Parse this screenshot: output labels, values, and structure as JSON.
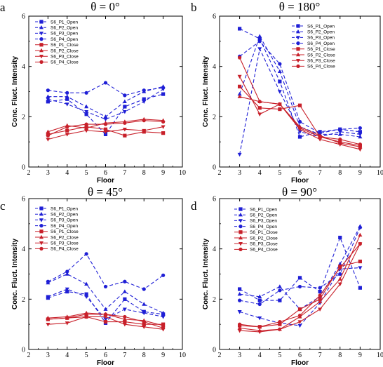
{
  "colors": {
    "open": "#1f1fd6",
    "close": "#c8202a"
  },
  "legend_labels": [
    "S6_P1_Open",
    "S6_P2_Open",
    "S6_P3_Open",
    "S6_P4_Open",
    "S6_P1_Close",
    "S6_P2_Close",
    "S6_P3_Close",
    "S6_P4_Close"
  ],
  "chart_data": [
    {
      "panel": "a",
      "title": "θ = 0°",
      "type": "line",
      "xlabel": "Floor",
      "ylabel": "Conc. Fluct. Intensity",
      "xlim": [
        2,
        10
      ],
      "ylim": [
        0,
        6
      ],
      "xticks": [
        2,
        3,
        4,
        5,
        6,
        7,
        8,
        9,
        10
      ],
      "yticks": [
        0,
        2,
        4,
        6
      ],
      "x": [
        3,
        4,
        5,
        6,
        7,
        8,
        9
      ],
      "series": [
        {
          "name": "S6_P1_Open",
          "style": "open",
          "marker": "square",
          "values": [
            2.6,
            2.7,
            2.1,
            1.3,
            2.4,
            2.7,
            2.9
          ]
        },
        {
          "name": "S6_P2_Open",
          "style": "open",
          "marker": "triangle",
          "values": [
            2.8,
            2.8,
            2.4,
            2.0,
            2.6,
            3.0,
            3.2
          ]
        },
        {
          "name": "S6_P3_Open",
          "style": "open",
          "marker": "tri-down",
          "values": [
            2.7,
            2.5,
            2.2,
            1.9,
            2.2,
            2.6,
            3.1
          ]
        },
        {
          "name": "S6_P4_Open",
          "style": "open",
          "marker": "circle",
          "values": [
            3.05,
            2.95,
            2.95,
            3.35,
            2.85,
            3.05,
            3.15
          ]
        },
        {
          "name": "S6_P1_Close",
          "style": "close",
          "marker": "square",
          "values": [
            1.3,
            1.45,
            1.6,
            1.5,
            1.25,
            1.4,
            1.35
          ]
        },
        {
          "name": "S6_P2_Close",
          "style": "close",
          "marker": "triangle",
          "values": [
            1.4,
            1.65,
            1.55,
            1.75,
            1.8,
            1.9,
            1.85
          ]
        },
        {
          "name": "S6_P3_Close",
          "style": "close",
          "marker": "tri-down",
          "values": [
            1.1,
            1.3,
            1.45,
            1.4,
            1.5,
            1.45,
            1.6
          ]
        },
        {
          "name": "S6_P4_Close",
          "style": "close",
          "marker": "circle",
          "values": [
            1.25,
            1.6,
            1.7,
            1.7,
            1.75,
            1.85,
            1.8
          ]
        }
      ]
    },
    {
      "panel": "b",
      "title": "θ = 180°",
      "type": "line",
      "xlabel": "Floor",
      "ylabel": "Conc. Fluct. Intensity",
      "xlim": [
        2,
        10
      ],
      "ylim": [
        0,
        6
      ],
      "xticks": [
        2,
        3,
        4,
        5,
        6,
        7,
        8,
        9,
        10
      ],
      "yticks": [
        0,
        2,
        4,
        6
      ],
      "x": [
        3,
        4,
        5,
        6,
        7,
        8,
        9
      ],
      "series": [
        {
          "name": "S6_P1_Open",
          "style": "open",
          "marker": "square",
          "values": [
            5.5,
            5.1,
            3.4,
            1.2,
            1.4,
            1.5,
            1.4
          ]
        },
        {
          "name": "S6_P2_Open",
          "style": "open",
          "marker": "triangle",
          "values": [
            2.9,
            5.2,
            3.8,
            1.6,
            1.3,
            1.3,
            1.2
          ]
        },
        {
          "name": "S6_P3_Open",
          "style": "open",
          "marker": "tri-down",
          "values": [
            0.5,
            4.7,
            3.0,
            1.4,
            1.2,
            1.4,
            1.3
          ]
        },
        {
          "name": "S6_P4_Open",
          "style": "open",
          "marker": "circle",
          "values": [
            4.4,
            5.0,
            4.1,
            1.8,
            1.35,
            1.5,
            1.55
          ]
        },
        {
          "name": "S6_P1_Close",
          "style": "close",
          "marker": "square",
          "values": [
            3.2,
            2.35,
            2.3,
            2.45,
            1.2,
            1.0,
            0.85
          ]
        },
        {
          "name": "S6_P2_Close",
          "style": "close",
          "marker": "triangle",
          "values": [
            2.8,
            2.6,
            2.5,
            1.6,
            1.25,
            0.95,
            0.8
          ]
        },
        {
          "name": "S6_P3_Close",
          "style": "close",
          "marker": "tri-down",
          "values": [
            3.6,
            2.1,
            2.5,
            1.5,
            1.1,
            0.9,
            0.7
          ]
        },
        {
          "name": "S6_P4_Close",
          "style": "close",
          "marker": "circle",
          "values": [
            4.35,
            2.6,
            2.5,
            1.55,
            1.2,
            1.1,
            0.9
          ]
        }
      ]
    },
    {
      "panel": "c",
      "title": "θ = 45°",
      "type": "line",
      "xlabel": "Floor",
      "ylabel": "Conc. Fluct. Intensity",
      "xlim": [
        2,
        10
      ],
      "ylim": [
        0,
        6
      ],
      "xticks": [
        2,
        3,
        4,
        5,
        6,
        7,
        8,
        9,
        10
      ],
      "yticks": [
        0,
        2,
        4,
        6
      ],
      "x": [
        3,
        4,
        5,
        6,
        7,
        8,
        9
      ],
      "series": [
        {
          "name": "S6_P1_Open",
          "style": "open",
          "marker": "square",
          "values": [
            2.05,
            2.3,
            2.2,
            1.05,
            2.0,
            1.5,
            1.4
          ]
        },
        {
          "name": "S6_P2_Open",
          "style": "open",
          "marker": "triangle",
          "values": [
            2.65,
            3.0,
            2.6,
            1.6,
            2.3,
            1.8,
            1.45
          ]
        },
        {
          "name": "S6_P3_Open",
          "style": "open",
          "marker": "tri-down",
          "values": [
            2.1,
            2.4,
            2.1,
            1.2,
            1.6,
            1.45,
            1.3
          ]
        },
        {
          "name": "S6_P4_Open",
          "style": "open",
          "marker": "circle",
          "values": [
            2.7,
            3.1,
            3.8,
            2.5,
            2.7,
            2.4,
            2.95
          ]
        },
        {
          "name": "S6_P1_Close",
          "style": "close",
          "marker": "square",
          "values": [
            1.2,
            1.25,
            1.3,
            1.1,
            1.1,
            1.0,
            1.0
          ]
        },
        {
          "name": "S6_P2_Close",
          "style": "close",
          "marker": "triangle",
          "values": [
            1.25,
            1.3,
            1.45,
            1.4,
            1.2,
            1.15,
            0.95
          ]
        },
        {
          "name": "S6_P3_Close",
          "style": "close",
          "marker": "tri-down",
          "values": [
            1.0,
            1.05,
            1.3,
            1.3,
            1.0,
            0.9,
            0.8
          ]
        },
        {
          "name": "S6_P4_Close",
          "style": "close",
          "marker": "circle",
          "values": [
            1.2,
            1.25,
            1.4,
            1.4,
            1.3,
            1.1,
            0.85
          ]
        }
      ]
    },
    {
      "panel": "d",
      "title": "θ = 90°",
      "type": "line",
      "xlabel": "Floor",
      "ylabel": "Conc. Fluct. Intensity",
      "xlim": [
        2,
        10
      ],
      "ylim": [
        0,
        6
      ],
      "xticks": [
        2,
        3,
        4,
        5,
        6,
        7,
        8,
        9,
        10
      ],
      "yticks": [
        0,
        2,
        4,
        6
      ],
      "x": [
        3,
        4,
        5,
        6,
        7,
        8,
        9
      ],
      "series": [
        {
          "name": "S6_P1_Open",
          "style": "open",
          "marker": "square",
          "values": [
            2.4,
            1.95,
            1.95,
            2.85,
            2.3,
            4.45,
            2.45
          ]
        },
        {
          "name": "S6_P2_Open",
          "style": "open",
          "marker": "triangle",
          "values": [
            2.2,
            2.1,
            2.5,
            1.6,
            2.1,
            3.4,
            4.9
          ]
        },
        {
          "name": "S6_P3_Open",
          "style": "open",
          "marker": "tri-down",
          "values": [
            1.5,
            1.25,
            1.05,
            0.95,
            1.85,
            3.2,
            3.25
          ]
        },
        {
          "name": "S6_P4_Open",
          "style": "open",
          "marker": "circle",
          "values": [
            1.95,
            1.8,
            2.35,
            2.5,
            2.45,
            3.0,
            4.85
          ]
        },
        {
          "name": "S6_P1_Close",
          "style": "close",
          "marker": "square",
          "values": [
            0.95,
            0.9,
            1.0,
            1.6,
            2.0,
            3.3,
            3.5
          ]
        },
        {
          "name": "S6_P2_Close",
          "style": "close",
          "marker": "triangle",
          "values": [
            0.85,
            0.75,
            0.8,
            1.3,
            1.9,
            2.8,
            4.55
          ]
        },
        {
          "name": "S6_P3_Close",
          "style": "close",
          "marker": "tri-down",
          "values": [
            0.75,
            0.7,
            0.8,
            1.1,
            1.6,
            2.6,
            4.2
          ]
        },
        {
          "name": "S6_P4_Close",
          "style": "close",
          "marker": "circle",
          "values": [
            1.0,
            0.9,
            1.1,
            1.35,
            2.15,
            3.25,
            4.2
          ]
        }
      ]
    }
  ]
}
